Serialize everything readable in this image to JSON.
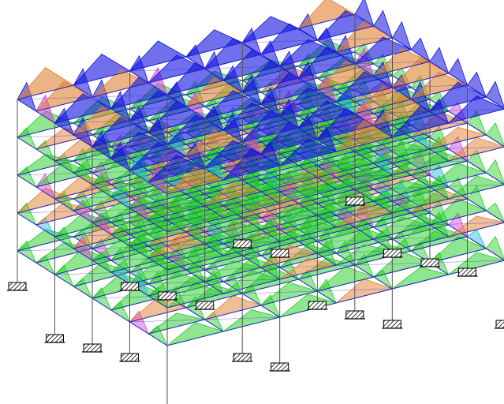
{
  "model": {
    "nx": 9,
    "nz": 7,
    "story_count": 5,
    "support_type": "fixed-support-icon",
    "colors": {
      "background": "#ffffff",
      "frame": "#2222cc",
      "column": "#555555",
      "roof_moment": "#1010e0",
      "floor_moment": "#22cc22",
      "secondary_magenta": "#d040d0",
      "secondary_cyan": "#20b8d8",
      "secondary_orange": "#e08030",
      "support_fill": "#888888",
      "support_outline": "#000000"
    }
  }
}
